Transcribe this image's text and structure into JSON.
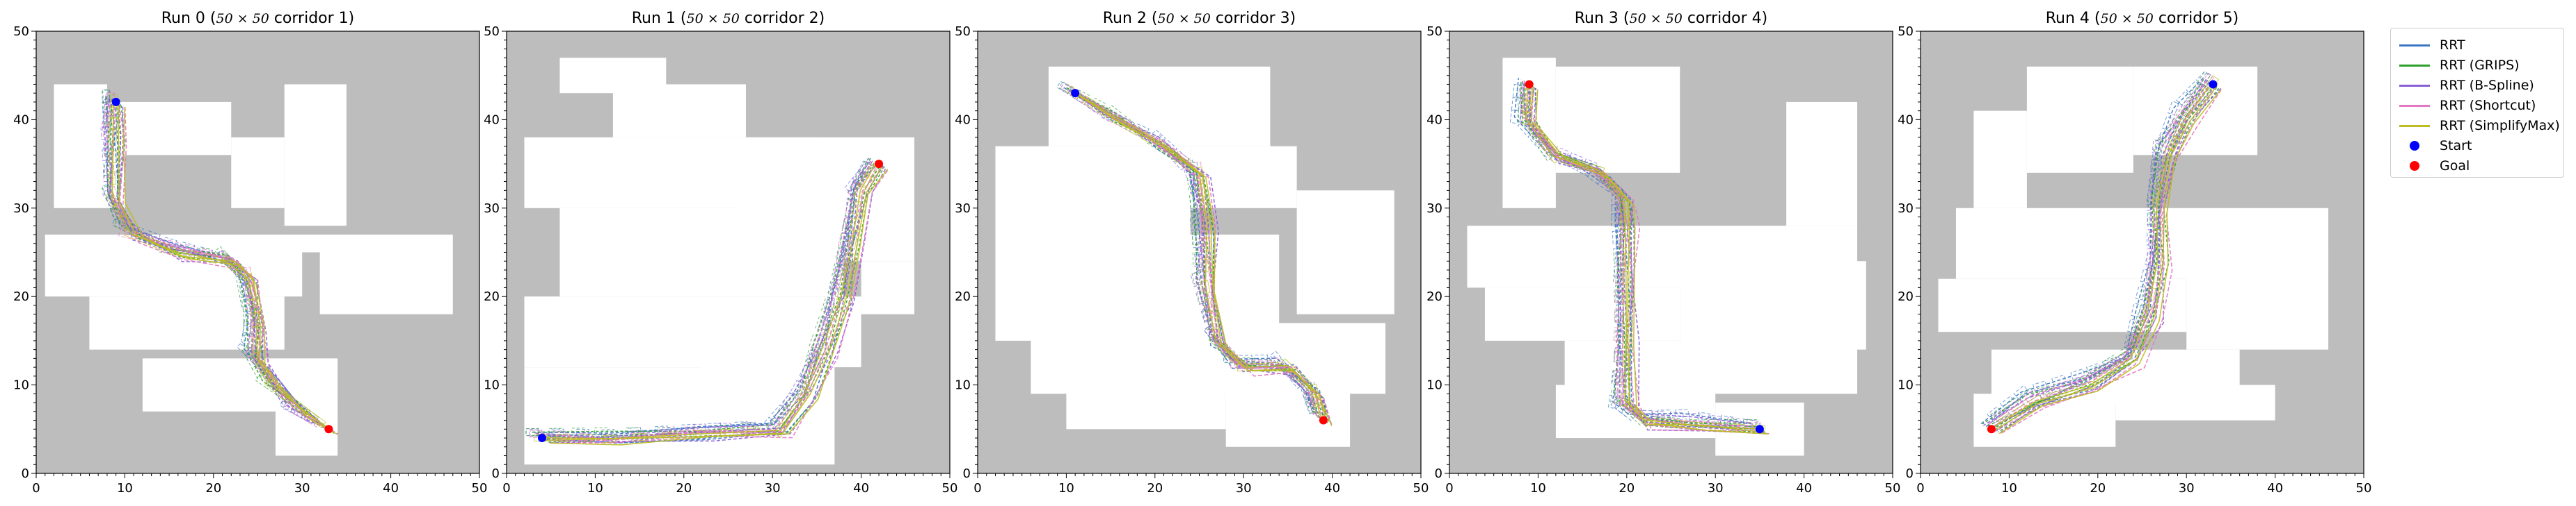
{
  "colors": {
    "rrt": "#3b75c4",
    "grips": "#2ca02c",
    "bspline": "#8a5fd6",
    "shortcut": "#e377c2",
    "simplify": "#bcbd22",
    "start": "#0000ff",
    "goal": "#ff0000",
    "obstacle": "#bdbdbd"
  },
  "legend": [
    {
      "label": "RRT",
      "kind": "line",
      "color": "#3b75c4"
    },
    {
      "label": "RRT (GRIPS)",
      "kind": "line",
      "color": "#2ca02c"
    },
    {
      "label": "RRT (B-Spline)",
      "kind": "line",
      "color": "#8a5fd6"
    },
    {
      "label": "RRT (Shortcut)",
      "kind": "line",
      "color": "#e377c2"
    },
    {
      "label": "RRT (SimplifyMax)",
      "kind": "line",
      "color": "#bcbd22"
    },
    {
      "label": "Start",
      "kind": "dot",
      "color": "#0000ff"
    },
    {
      "label": "Goal",
      "kind": "dot",
      "color": "#ff0000"
    }
  ],
  "chart_data": [
    {
      "type": "line",
      "title_prefix": "Run 0 (",
      "title_math": "50 × 50",
      "title_suffix": " corridor 1)",
      "xlim": [
        0,
        50
      ],
      "ylim": [
        0,
        50
      ],
      "xticks": [
        0,
        10,
        20,
        30,
        40,
        50
      ],
      "yticks": [
        0,
        10,
        20,
        30,
        40,
        50
      ],
      "free_space": [
        [
          2,
          38,
          8,
          44
        ],
        [
          8,
          36,
          22,
          42
        ],
        [
          22,
          30,
          28,
          38
        ],
        [
          28,
          28,
          35,
          44
        ],
        [
          1,
          25,
          47,
          27
        ],
        [
          1,
          20,
          30,
          25
        ],
        [
          32,
          18,
          47,
          25
        ],
        [
          6,
          14,
          28,
          20
        ],
        [
          12,
          7,
          34,
          13
        ],
        [
          27,
          2,
          34,
          8
        ],
        [
          2,
          30,
          10,
          40
        ]
      ],
      "start": [
        9,
        42
      ],
      "goal": [
        33,
        5
      ],
      "path": [
        [
          9,
          42
        ],
        [
          9,
          38
        ],
        [
          9,
          31
        ],
        [
          11,
          27
        ],
        [
          16,
          25
        ],
        [
          22,
          24
        ],
        [
          24,
          22
        ],
        [
          25,
          17
        ],
        [
          25,
          13
        ],
        [
          27,
          10
        ],
        [
          30,
          7
        ],
        [
          33,
          5
        ]
      ]
    },
    {
      "type": "line",
      "title_prefix": "Run 1 (",
      "title_math": "50 × 50",
      "title_suffix": " corridor 2)",
      "xlim": [
        0,
        50
      ],
      "ylim": [
        0,
        50
      ],
      "xticks": [
        0,
        10,
        20,
        30,
        40,
        50
      ],
      "yticks": [
        0,
        10,
        20,
        30,
        40,
        50
      ],
      "free_space": [
        [
          6,
          43,
          18,
          47
        ],
        [
          12,
          38,
          27,
          44
        ],
        [
          2,
          30,
          35,
          38
        ],
        [
          6,
          20,
          38,
          30
        ],
        [
          26,
          24,
          46,
          38
        ],
        [
          2,
          12,
          40,
          20
        ],
        [
          2,
          1,
          37,
          12
        ],
        [
          36,
          26,
          45,
          36
        ],
        [
          40,
          18,
          46,
          24
        ],
        [
          22,
          8,
          36,
          13
        ]
      ],
      "start": [
        4,
        4
      ],
      "goal": [
        42,
        35
      ],
      "path": [
        [
          4,
          4
        ],
        [
          12,
          4
        ],
        [
          22,
          4.5
        ],
        [
          31,
          5
        ],
        [
          34,
          9
        ],
        [
          36,
          14
        ],
        [
          38,
          20
        ],
        [
          39,
          26
        ],
        [
          40,
          32
        ],
        [
          42,
          35
        ]
      ]
    },
    {
      "type": "line",
      "title_prefix": "Run 2 (",
      "title_math": "50 × 50",
      "title_suffix": " corridor 3)",
      "xlim": [
        0,
        50
      ],
      "ylim": [
        0,
        50
      ],
      "xticks": [
        0,
        10,
        20,
        30,
        40,
        50
      ],
      "yticks": [
        0,
        10,
        20,
        30,
        40,
        50
      ],
      "free_space": [
        [
          8,
          37,
          33,
          46
        ],
        [
          2,
          26,
          24,
          37
        ],
        [
          24,
          30,
          36,
          37
        ],
        [
          2,
          15,
          34,
          27
        ],
        [
          36,
          18,
          47,
          32
        ],
        [
          6,
          9,
          46,
          17
        ],
        [
          28,
          3,
          42,
          11
        ],
        [
          10,
          5,
          28,
          12
        ]
      ],
      "start": [
        11,
        43
      ],
      "goal": [
        39,
        6
      ],
      "path": [
        [
          11,
          43
        ],
        [
          16,
          40
        ],
        [
          21,
          37
        ],
        [
          25,
          34
        ],
        [
          26,
          28
        ],
        [
          26,
          21
        ],
        [
          27,
          15
        ],
        [
          30,
          12
        ],
        [
          35,
          12
        ],
        [
          38,
          9
        ],
        [
          39,
          6
        ]
      ]
    },
    {
      "type": "line",
      "title_prefix": "Run 3 (",
      "title_math": "50 × 50",
      "title_suffix": " corridor 4)",
      "xlim": [
        0,
        50
      ],
      "ylim": [
        0,
        50
      ],
      "xticks": [
        0,
        10,
        20,
        30,
        40,
        50
      ],
      "yticks": [
        0,
        10,
        20,
        30,
        40,
        50
      ],
      "free_space": [
        [
          6,
          30,
          12,
          47
        ],
        [
          12,
          34,
          26,
          46
        ],
        [
          2,
          21,
          46,
          28
        ],
        [
          4,
          15,
          26,
          21
        ],
        [
          26,
          14,
          47,
          24
        ],
        [
          13,
          9,
          46,
          15
        ],
        [
          12,
          4,
          30,
          10
        ],
        [
          30,
          2,
          40,
          8
        ],
        [
          38,
          28,
          46,
          42
        ]
      ],
      "start": [
        35,
        5
      ],
      "goal": [
        9,
        44
      ],
      "path": [
        [
          35,
          5
        ],
        [
          28,
          5.5
        ],
        [
          22,
          6
        ],
        [
          20,
          8
        ],
        [
          20,
          15
        ],
        [
          20,
          22
        ],
        [
          20,
          28
        ],
        [
          20,
          31
        ],
        [
          17,
          34
        ],
        [
          12,
          36
        ],
        [
          9,
          40
        ],
        [
          9,
          44
        ]
      ]
    },
    {
      "type": "line",
      "title_prefix": "Run 4 (",
      "title_math": "50 × 50",
      "title_suffix": " corridor 5)",
      "xlim": [
        0,
        50
      ],
      "ylim": [
        0,
        50
      ],
      "xticks": [
        0,
        10,
        20,
        30,
        40,
        50
      ],
      "yticks": [
        0,
        10,
        20,
        30,
        40,
        50
      ],
      "free_space": [
        [
          6,
          30,
          12,
          41
        ],
        [
          12,
          34,
          24,
          46
        ],
        [
          24,
          36,
          38,
          46
        ],
        [
          4,
          22,
          46,
          30
        ],
        [
          2,
          16,
          30,
          22
        ],
        [
          30,
          14,
          46,
          26
        ],
        [
          8,
          8,
          36,
          14
        ],
        [
          6,
          3,
          22,
          9
        ],
        [
          22,
          6,
          40,
          10
        ]
      ],
      "start": [
        33,
        44
      ],
      "goal": [
        8,
        5
      ],
      "path": [
        [
          33,
          44
        ],
        [
          30,
          40
        ],
        [
          28,
          36
        ],
        [
          27,
          30
        ],
        [
          27,
          24
        ],
        [
          26,
          18
        ],
        [
          24,
          13
        ],
        [
          19,
          10
        ],
        [
          13,
          8
        ],
        [
          8,
          5
        ]
      ]
    }
  ]
}
